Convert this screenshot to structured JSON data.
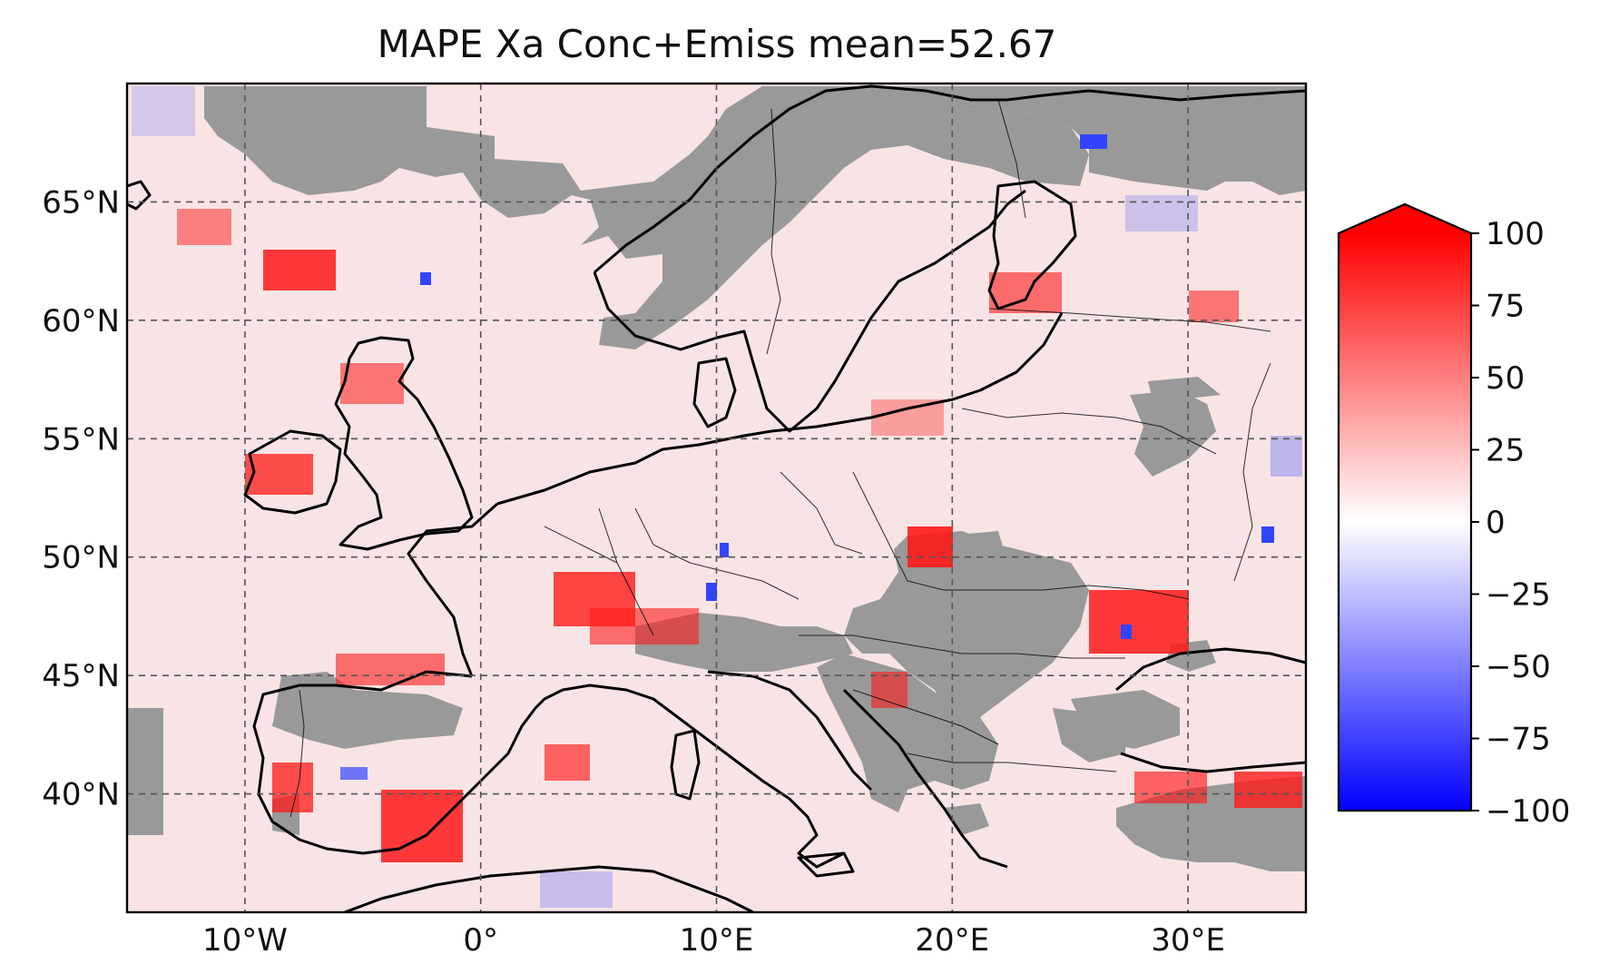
{
  "title": "MAPE Xa Conc+Emiss mean=52.67",
  "map": {
    "lon_range": [
      -15,
      35
    ],
    "lat_range": [
      35,
      70
    ],
    "lon_ticks": [
      {
        "value": -10,
        "label": "10°W"
      },
      {
        "value": 0,
        "label": "0°"
      },
      {
        "value": 10,
        "label": "10°E"
      },
      {
        "value": 20,
        "label": "20°E"
      },
      {
        "value": 30,
        "label": "30°E"
      }
    ],
    "lat_ticks": [
      {
        "value": 40,
        "label": "40°N"
      },
      {
        "value": 45,
        "label": "45°N"
      },
      {
        "value": 50,
        "label": "50°N"
      },
      {
        "value": 55,
        "label": "55°N"
      },
      {
        "value": 60,
        "label": "60°N"
      },
      {
        "value": 65,
        "label": "65°N"
      }
    ],
    "gridlines": true,
    "missing_color": "#999999",
    "coastline_color": "#000000"
  },
  "colorbar": {
    "range": [
      -100,
      100
    ],
    "extend": "max",
    "ticks": [
      {
        "value": 100,
        "label": "100"
      },
      {
        "value": 75,
        "label": "75"
      },
      {
        "value": 50,
        "label": "50"
      },
      {
        "value": 25,
        "label": "25"
      },
      {
        "value": 0,
        "label": "0"
      },
      {
        "value": -25,
        "label": "−25"
      },
      {
        "value": -50,
        "label": "−50"
      },
      {
        "value": -75,
        "label": "−75"
      },
      {
        "value": -100,
        "label": "−100"
      }
    ],
    "colors": {
      "min": "#0000ff",
      "mid": "#ffffff",
      "max": "#ff0000"
    }
  }
}
